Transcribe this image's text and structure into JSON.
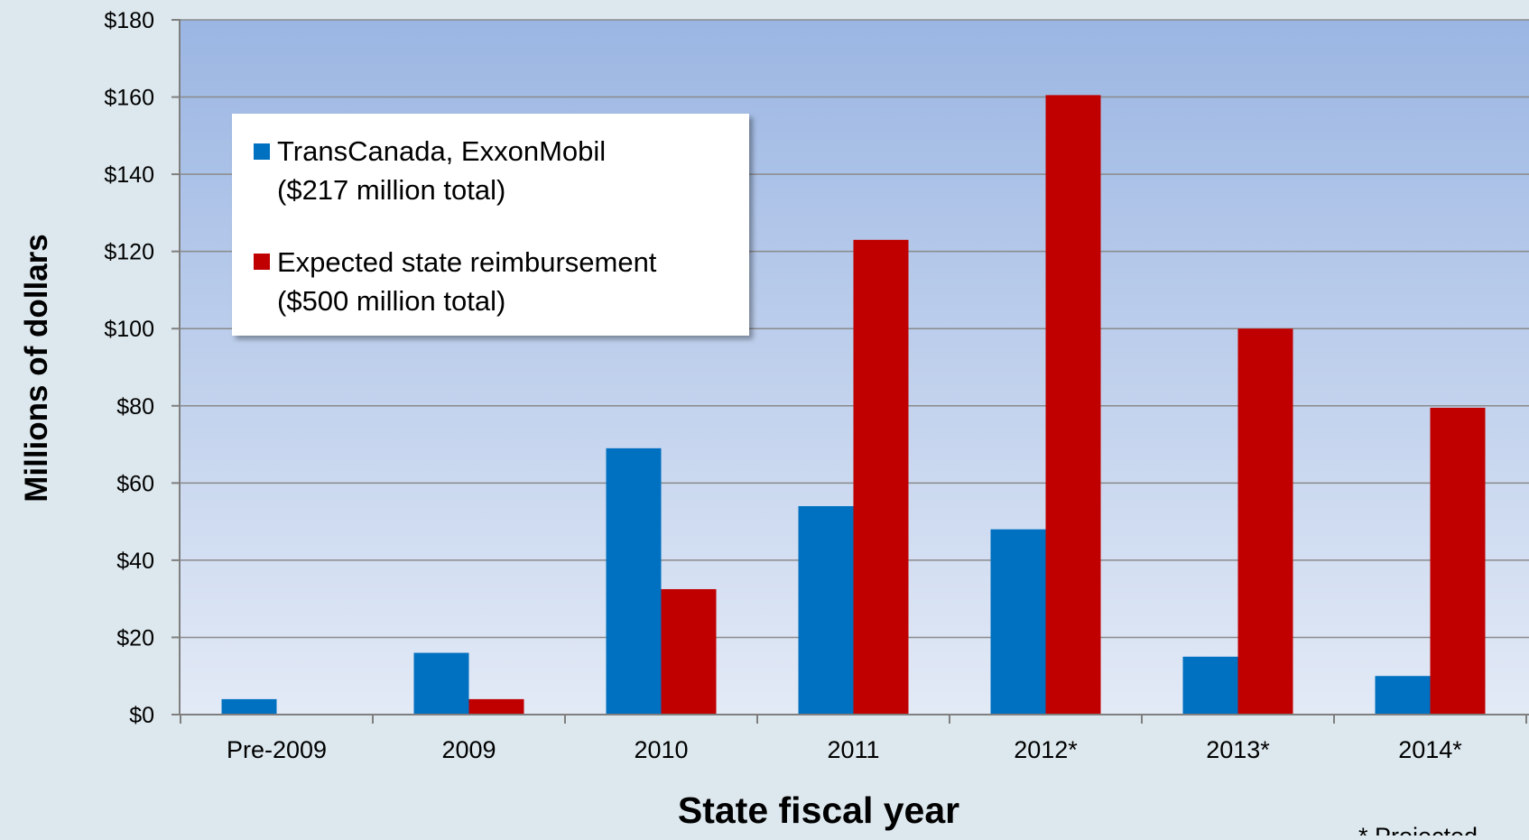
{
  "chart_data": {
    "type": "bar",
    "title": "",
    "xlabel": "State fiscal year",
    "ylabel": "Millions of dollars",
    "ylim": [
      0,
      180
    ],
    "yticks": [
      0,
      20,
      40,
      60,
      80,
      100,
      120,
      140,
      160,
      180
    ],
    "ytick_labels": [
      "$0",
      "$20",
      "$40",
      "$60",
      "$80",
      "$100",
      "$120",
      "$140",
      "$160",
      "$180"
    ],
    "categories": [
      "Pre-2009",
      "2009",
      "2010",
      "2011",
      "2012*",
      "2013*",
      "2014*"
    ],
    "grid": true,
    "legend_position": "top-left",
    "series": [
      {
        "name": "TransCanada, ExxonMobil",
        "legend_subtitle": "($217 million total)",
        "color": "#0070c0",
        "values": [
          4,
          16,
          69,
          54,
          48,
          15,
          10
        ]
      },
      {
        "name": "Expected state reimbursement",
        "legend_subtitle": "($500 million total)",
        "color": "#c00000",
        "values": [
          0,
          4,
          32.5,
          123,
          160.5,
          100,
          79.5
        ]
      }
    ],
    "annotation": "* Projected"
  },
  "colors": {
    "plot_top": "#9bb6e3",
    "plot_bottom": "#e3eaf6",
    "page_background": "#dde8ee",
    "gridline": "#8a8a8a",
    "axis": "#7f7f7f",
    "text": "#000000"
  }
}
